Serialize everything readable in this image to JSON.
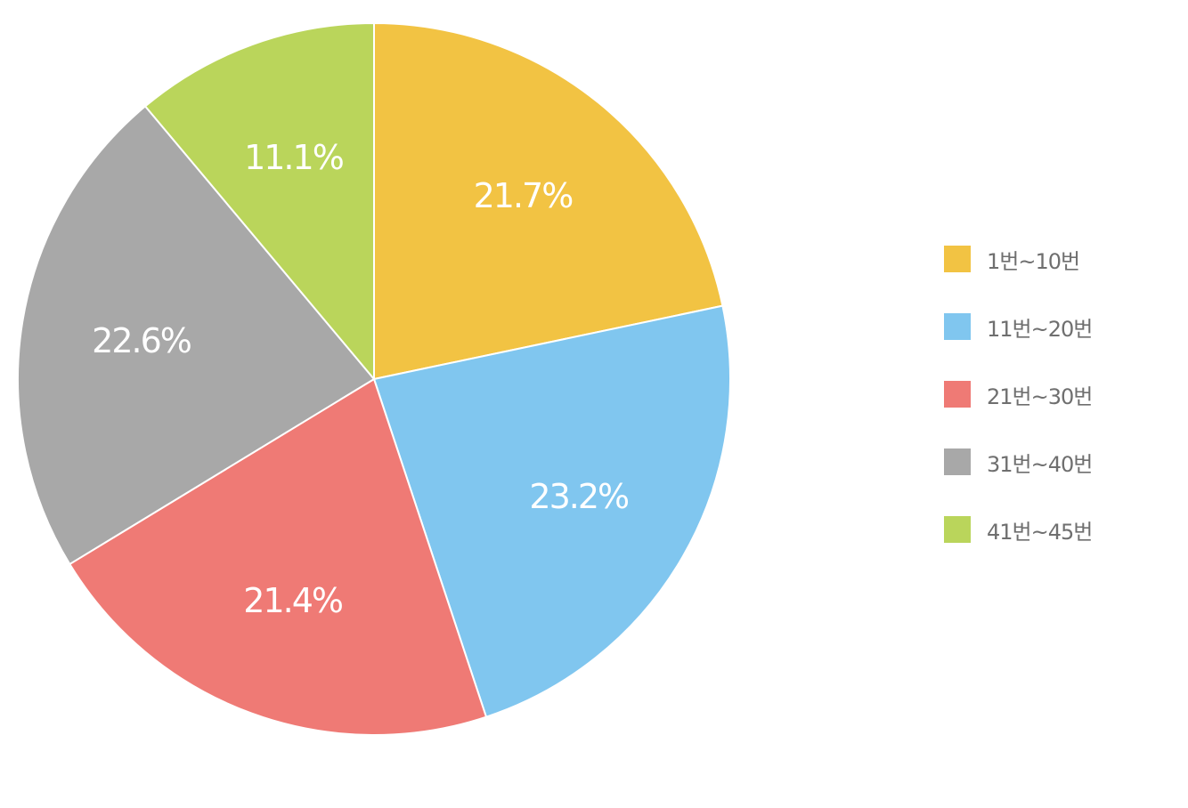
{
  "chart_data": {
    "type": "pie",
    "start_angle": "12 o'clock",
    "direction": "clockwise",
    "legend_position": "right",
    "slices": [
      {
        "label": "1번~10번",
        "value": 21.7,
        "value_label": "21.7%",
        "color": "#F2C343"
      },
      {
        "label": "11번~20번",
        "value": 23.2,
        "value_label": "23.2%",
        "color": "#80C6EF"
      },
      {
        "label": "21번~30번",
        "value": 21.4,
        "value_label": "21.4%",
        "color": "#EF7A75"
      },
      {
        "label": "31번~40번",
        "value": 22.6,
        "value_label": "22.6%",
        "color": "#A8A8A8"
      },
      {
        "label": "41번~45번",
        "value": 11.1,
        "value_label": "11.1%",
        "color": "#BAD55B"
      }
    ]
  }
}
